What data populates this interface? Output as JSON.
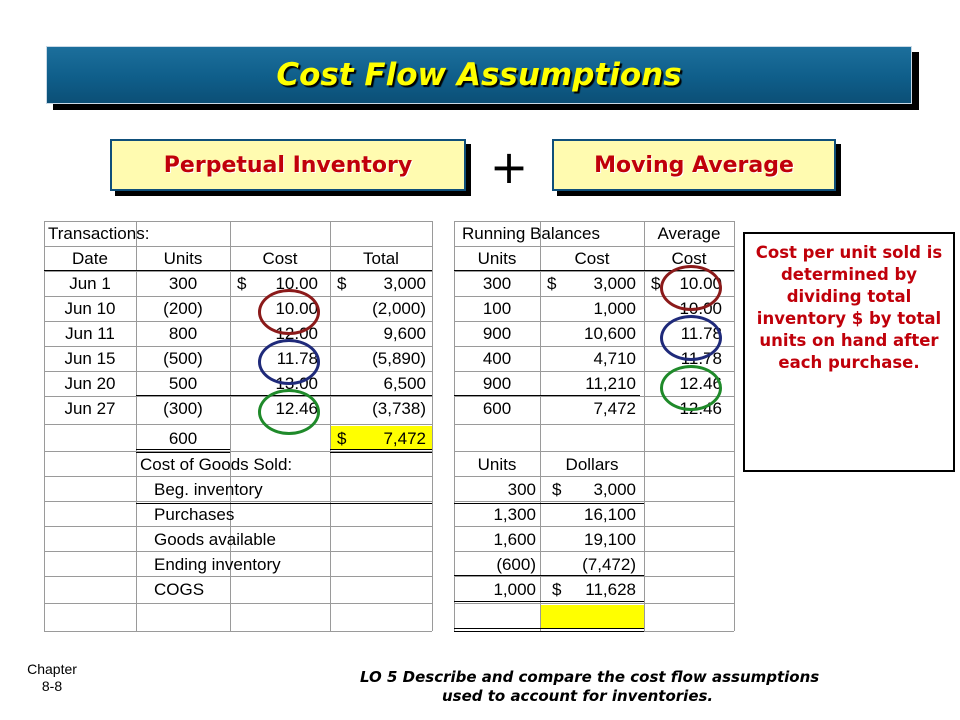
{
  "title": "Cost Flow Assumptions",
  "subtitles": {
    "left": "Perpetual Inventory",
    "operator": "+",
    "right": "Moving Average"
  },
  "table": {
    "transactions_header": "Transactions:",
    "running_header": "Running Balances",
    "average_header": "Average",
    "columns": [
      "Date",
      "Units",
      "Cost",
      "Total",
      "Units",
      "Cost",
      "Cost"
    ],
    "rows": [
      {
        "date": "Jun 1",
        "units": "300",
        "cost_sign": "$",
        "cost": "10.00",
        "total_sign": "$",
        "total": "3,000",
        "bal_units": "300",
        "bal_cost_sign": "$",
        "bal_cost": "3,000",
        "avg_sign": "$",
        "avg": "10.00"
      },
      {
        "date": "Jun 10",
        "units": "(200)",
        "cost_sign": "",
        "cost": "10.00",
        "total_sign": "",
        "total": "(2,000)",
        "bal_units": "100",
        "bal_cost_sign": "",
        "bal_cost": "1,000",
        "avg_sign": "",
        "avg": "10.00"
      },
      {
        "date": "Jun 11",
        "units": "800",
        "cost_sign": "",
        "cost": "12.00",
        "total_sign": "",
        "total": "9,600",
        "bal_units": "900",
        "bal_cost_sign": "",
        "bal_cost": "10,600",
        "avg_sign": "",
        "avg": "11.78"
      },
      {
        "date": "Jun 15",
        "units": "(500)",
        "cost_sign": "",
        "cost": "11.78",
        "total_sign": "",
        "total": "(5,890)",
        "bal_units": "400",
        "bal_cost_sign": "",
        "bal_cost": "4,710",
        "avg_sign": "",
        "avg": "11.78"
      },
      {
        "date": "Jun 20",
        "units": "500",
        "cost_sign": "",
        "cost": "13.00",
        "total_sign": "",
        "total": "6,500",
        "bal_units": "900",
        "bal_cost_sign": "",
        "bal_cost": "11,210",
        "avg_sign": "",
        "avg": "12.46"
      },
      {
        "date": "Jun 27",
        "units": "(300)",
        "cost_sign": "",
        "cost": "12.46",
        "total_sign": "",
        "total": "(3,738)",
        "bal_units": "600",
        "bal_cost_sign": "",
        "bal_cost": "7,472",
        "avg_sign": "",
        "avg": "12.46"
      }
    ],
    "total_units": "600",
    "total_sign": "$",
    "total_value": "7,472",
    "cogs_header": "Cost of Goods Sold:",
    "cogs_units_header": "Units",
    "cogs_dollars_header": "Dollars",
    "cogs_rows": [
      {
        "label": "Beg. inventory",
        "units": "300",
        "sign": "$",
        "dollars": "3,000"
      },
      {
        "label": "Purchases",
        "units": "1,300",
        "sign": "",
        "dollars": "16,100"
      },
      {
        "label": "Goods available",
        "units": "1,600",
        "sign": "",
        "dollars": "19,100"
      },
      {
        "label": "Ending inventory",
        "units": "(600)",
        "sign": "",
        "dollars": "(7,472)"
      },
      {
        "label": "COGS",
        "units": "1,000",
        "sign": "$",
        "dollars": "11,628"
      }
    ]
  },
  "note": "Cost per unit sold is determined by dividing total inventory $ by total units on hand after each purchase.",
  "footer": {
    "chapter_label": "Chapter",
    "chapter_number": "8-8",
    "lo_line1": "LO 5 Describe and compare the cost flow assumptions",
    "lo_line2": "used to account for inventories."
  },
  "colors": {
    "title_text": "#ffff00",
    "title_bar": "#0f5e8a",
    "subtitle_text": "#c0000a",
    "subtitle_fill": "#fffbb0",
    "highlight": "#ffff00",
    "circle_red": "#8b1a1a",
    "circle_blue": "#1f2a7a",
    "circle_green": "#1f8a2a"
  }
}
